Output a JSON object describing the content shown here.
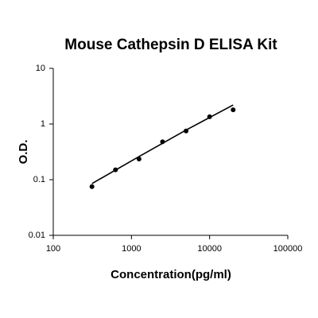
{
  "chart_data": {
    "type": "scatter",
    "title": "Mouse Cathepsin D ELISA Kit",
    "xlabel": "Concentration(pg/ml)",
    "ylabel": "O.D.",
    "x": [
      312.5,
      625,
      1250,
      2500,
      5000,
      10000,
      20000
    ],
    "values": [
      0.075,
      0.15,
      0.235,
      0.48,
      0.75,
      1.35,
      1.8
    ],
    "color": "#000000",
    "fit_line": {
      "x": [
        312.5,
        1250,
        5000,
        20000
      ],
      "values": [
        0.085,
        0.26,
        0.78,
        2.2
      ]
    },
    "xlog": true,
    "ylog": true,
    "xlim": [
      100,
      100000
    ],
    "ylim": [
      0.01,
      10
    ],
    "xticks": [
      100,
      1000,
      10000,
      100000
    ],
    "yticks": [
      0.01,
      0.1,
      1,
      10
    ]
  }
}
